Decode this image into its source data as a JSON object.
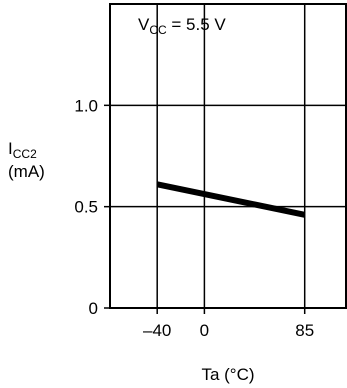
{
  "chart_data": {
    "type": "line",
    "annotation": {
      "main": "V",
      "sub": "CC",
      "rest": " = 5.5 V"
    },
    "ylabel": {
      "main": "I",
      "sub": "CC2",
      "unit": "(mA)"
    },
    "xlabel": "Ta (°C)",
    "xlim": [
      -80,
      120
    ],
    "ylim": [
      0,
      1.5
    ],
    "xticks": [
      {
        "value": -40,
        "label": "–40"
      },
      {
        "value": 0,
        "label": "0"
      },
      {
        "value": 85,
        "label": "85"
      }
    ],
    "yticks": [
      {
        "value": 0,
        "label": "0"
      },
      {
        "value": 0.5,
        "label": "0.5"
      },
      {
        "value": 1.0,
        "label": "1.0"
      }
    ],
    "grid": true,
    "series": [
      {
        "x": [
          -40,
          85
        ],
        "y": [
          0.61,
          0.46
        ]
      }
    ]
  }
}
